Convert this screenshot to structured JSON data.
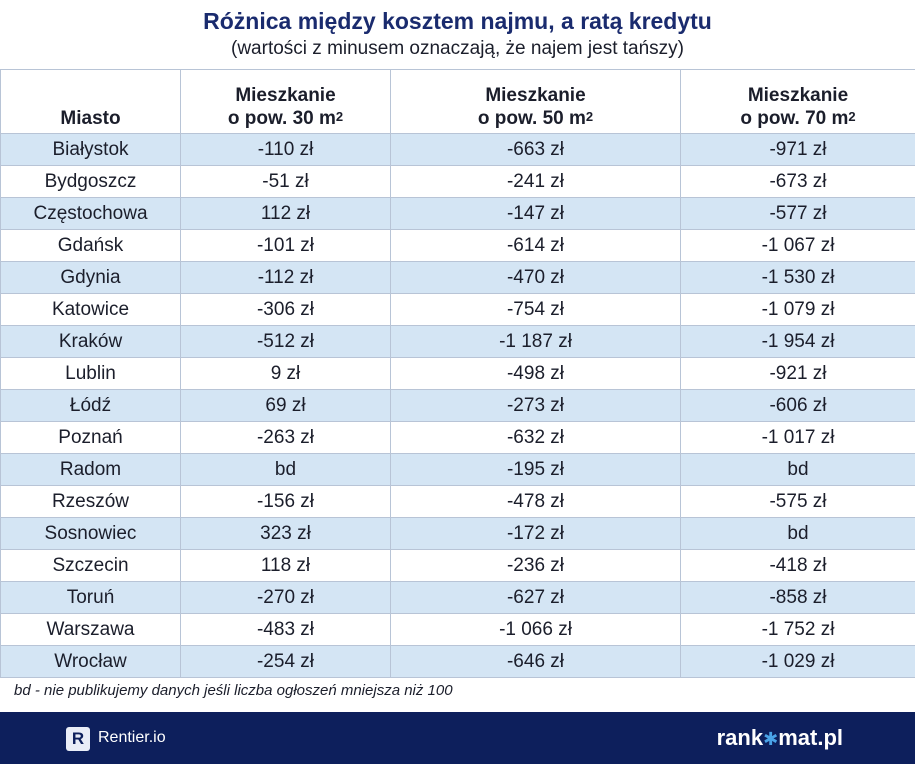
{
  "title": "Różnica między kosztem najmu, a ratą kredytu",
  "subtitle": "(wartości z minusem oznaczają, że najem jest tańszy)",
  "table": {
    "header": {
      "city": "Miasto",
      "col1_line1": "Mieszkanie",
      "col1_line2": "o pow. 30 m",
      "col2_line1": "Mieszkanie",
      "col2_line2": "o pow. 50 m",
      "col3_line1": "Mieszkanie",
      "col3_line2": "o pow. 70 m",
      "sup": "2"
    },
    "rows": [
      [
        "Białystok",
        "-110 zł",
        "-663 zł",
        "-971 zł"
      ],
      [
        "Bydgoszcz",
        "-51 zł",
        "-241 zł",
        "-673 zł"
      ],
      [
        "Częstochowa",
        "112 zł",
        "-147 zł",
        "-577 zł"
      ],
      [
        "Gdańsk",
        "-101 zł",
        "-614 zł",
        "-1 067 zł"
      ],
      [
        "Gdynia",
        "-112 zł",
        "-470 zł",
        "-1 530 zł"
      ],
      [
        "Katowice",
        "-306 zł",
        "-754 zł",
        "-1 079 zł"
      ],
      [
        "Kraków",
        "-512 zł",
        "-1 187 zł",
        "-1 954 zł"
      ],
      [
        "Lublin",
        "9 zł",
        "-498 zł",
        "-921 zł"
      ],
      [
        "Łódź",
        "69 zł",
        "-273 zł",
        "-606 zł"
      ],
      [
        "Poznań",
        "-263 zł",
        "-632 zł",
        "-1 017 zł"
      ],
      [
        "Radom",
        "bd",
        "-195 zł",
        "bd"
      ],
      [
        "Rzeszów",
        "-156 zł",
        "-478 zł",
        "-575 zł"
      ],
      [
        "Sosnowiec",
        "323 zł",
        "-172 zł",
        "bd"
      ],
      [
        "Szczecin",
        "118 zł",
        "-236 zł",
        "-418 zł"
      ],
      [
        "Toruń",
        "-270 zł",
        "-627 zł",
        "-858 zł"
      ],
      [
        "Warszawa",
        "-483 zł",
        "-1 066 zł",
        "-1 752 zł"
      ],
      [
        "Wrocław",
        "-254 zł",
        "-646 zł",
        "-1 029 zł"
      ]
    ]
  },
  "footnote": "bd - nie publikujemy danych jeśli liczba ogłoszeń mniejsza niż 100",
  "footer": {
    "left_logo_letter": "R",
    "left_text": "Rentier.io",
    "right_text_a": "rank",
    "right_star": "✱",
    "right_text_b": "mat.pl"
  },
  "colors": {
    "title": "#1a2b6e",
    "row_stripe": "#d4e5f4",
    "footer_bg": "#0d1f5c"
  },
  "chart_data": {
    "type": "table",
    "title": "Różnica między kosztem najmu, a ratą kredytu",
    "subtitle": "(wartości z minusem oznaczają, że najem jest tańszy)",
    "columns": [
      "Miasto",
      "Mieszkanie o pow. 30 m2",
      "Mieszkanie o pow. 50 m2",
      "Mieszkanie o pow. 70 m2"
    ],
    "rows": [
      [
        "Białystok",
        -110,
        -663,
        -971
      ],
      [
        "Bydgoszcz",
        -51,
        -241,
        -673
      ],
      [
        "Częstochowa",
        112,
        -147,
        -577
      ],
      [
        "Gdańsk",
        -101,
        -614,
        -1067
      ],
      [
        "Gdynia",
        -112,
        -470,
        -1530
      ],
      [
        "Katowice",
        -306,
        -754,
        -1079
      ],
      [
        "Kraków",
        -512,
        -1187,
        -1954
      ],
      [
        "Lublin",
        9,
        -498,
        -921
      ],
      [
        "Łódź",
        69,
        -273,
        -606
      ],
      [
        "Poznań",
        -263,
        -632,
        -1017
      ],
      [
        "Radom",
        "bd",
        -195,
        "bd"
      ],
      [
        "Rzeszów",
        -156,
        -478,
        -575
      ],
      [
        "Sosnowiec",
        323,
        -172,
        "bd"
      ],
      [
        "Szczecin",
        118,
        -236,
        -418
      ],
      [
        "Toruń",
        -270,
        -627,
        -858
      ],
      [
        "Warszawa",
        -483,
        -1066,
        -1752
      ],
      [
        "Wrocław",
        -254,
        -646,
        -1029
      ]
    ],
    "unit": "zł"
  }
}
